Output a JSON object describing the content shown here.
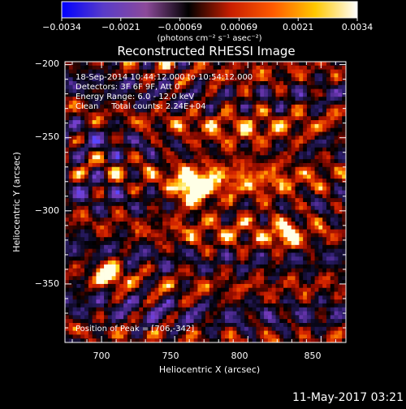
{
  "colorbar": {
    "ticks": [
      "−0.0034",
      "−0.0021",
      "−0.00069",
      "0.00069",
      "0.0021",
      "0.0034"
    ],
    "unit_label": "(photons cm⁻² s⁻¹ asec⁻²)",
    "gradient": [
      "#0000ff",
      "#5a3cc8",
      "#8c4a9a",
      "#000000",
      "#c81e00",
      "#ff5a00",
      "#ffc800",
      "#ffffff"
    ]
  },
  "chart_data": {
    "type": "heatmap",
    "title": "Reconstructed RHESSI Image",
    "xlabel": "Heliocentric X (arcsec)",
    "ylabel": "Heliocentric Y (arcsec)",
    "xlim": [
      675,
      867
    ],
    "ylim": [
      -390,
      -198
    ],
    "xticks": [
      700,
      750,
      800,
      850
    ],
    "yticks": [
      -200,
      -250,
      -300,
      -350
    ],
    "xtick_labels": [
      "700",
      "750",
      "800",
      "850"
    ],
    "ytick_labels": [
      "−200",
      "−250",
      "−300",
      "−350"
    ],
    "peak": [
      706,
      -342
    ]
  },
  "info": {
    "line1": "18-Sep-2014 10:44:12.000 to 10:54:12.000",
    "line2": "Detectors: 3F 6F 9F, Att 0",
    "line3": "Energy Range: 6.0 - 12.0 keV",
    "line4": "Clean     Total counts: 2.24E+04",
    "peak_text": "Position of Peak = [706,-342]"
  },
  "timestamp": "11-May-2017 03:21"
}
